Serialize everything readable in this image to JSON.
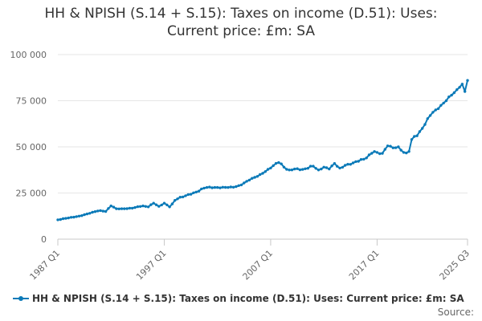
{
  "chart_data": {
    "type": "line",
    "title": "HH & NPISH (S.14 + S.15): Taxes on income (D.51): Uses: Current price: £m: SA",
    "title_lines": [
      "HH & NPISH (S.14 + S.15): Taxes on income (D.51): Uses:",
      "Current price: £m: SA"
    ],
    "xlabel": "",
    "ylabel": "",
    "ylim": [
      0,
      100000
    ],
    "ytick_values": [
      0,
      25000,
      50000,
      75000,
      100000
    ],
    "ytick_labels": [
      "0",
      "25 000",
      "50 000",
      "75 000",
      "100 000"
    ],
    "xtick_labels": [
      "1987 Q1",
      "1997 Q1",
      "2007 Q1",
      "2017 Q1",
      "2025 Q3"
    ],
    "xtick_positions": [
      "1987 Q1",
      "1997 Q1",
      "2007 Q1",
      "2017 Q1",
      "2025 Q3"
    ],
    "x_range": [
      "1987 Q1",
      "2025 Q3"
    ],
    "grid": "horizontal",
    "legend_position": "bottom-left",
    "series": [
      {
        "name": "HH & NPISH (S.14 + S.15): Taxes on income (D.51): Uses: Current price: £m: SA",
        "color": "#0b7ab8",
        "x": [
          "1987 Q1",
          "1988 Q1",
          "1989 Q1",
          "1990 Q1",
          "1991 Q1",
          "1991 Q3",
          "1992 Q1",
          "1992 Q3",
          "1993 Q1",
          "1994 Q1",
          "1995 Q1",
          "1995 Q3",
          "1996 Q1",
          "1996 Q3",
          "1997 Q1",
          "1997 Q3",
          "1998 Q1",
          "1999 Q1",
          "2000 Q1",
          "2001 Q1",
          "2002 Q1",
          "2003 Q1",
          "2004 Q1",
          "2005 Q1",
          "2006 Q1",
          "2007 Q1",
          "2007 Q4",
          "2008 Q2",
          "2008 Q4",
          "2009 Q2",
          "2010 Q1",
          "2011 Q1",
          "2011 Q3",
          "2012 Q1",
          "2012 Q3",
          "2013 Q1",
          "2013 Q3",
          "2014 Q1",
          "2014 Q3",
          "2015 Q1",
          "2016 Q1",
          "2016 Q4",
          "2017 Q1",
          "2017 Q3",
          "2018 Q1",
          "2018 Q3",
          "2019 Q1",
          "2019 Q3",
          "2020 Q1",
          "2020 Q2",
          "2020 Q4",
          "2021 Q2",
          "2022 Q1",
          "2022 Q3",
          "2023 Q1",
          "2023 Q3",
          "2024 Q1",
          "2024 Q3",
          "2025 Q1",
          "2025 Q2",
          "2025 Q3"
        ],
        "values": [
          10500,
          11500,
          12500,
          14000,
          15500,
          15000,
          18000,
          16500,
          16500,
          16800,
          18000,
          17500,
          19500,
          17800,
          19500,
          17500,
          21000,
          23500,
          25500,
          28000,
          28000,
          28000,
          29000,
          32000,
          35000,
          38500,
          41500,
          39000,
          37500,
          38000,
          37800,
          39500,
          37500,
          39000,
          38000,
          41000,
          38500,
          40000,
          40500,
          42000,
          44000,
          47500,
          47000,
          46500,
          50500,
          49500,
          50000,
          47000,
          47500,
          54000,
          56000,
          60000,
          67000,
          70000,
          72500,
          75000,
          78000,
          81000,
          84000,
          80000,
          86000
        ]
      }
    ]
  },
  "legend": {
    "label": "HH & NPISH (S.14 + S.15): Taxes on income (D.51): Uses: Current price: £m: SA"
  },
  "source_label": "Source:"
}
